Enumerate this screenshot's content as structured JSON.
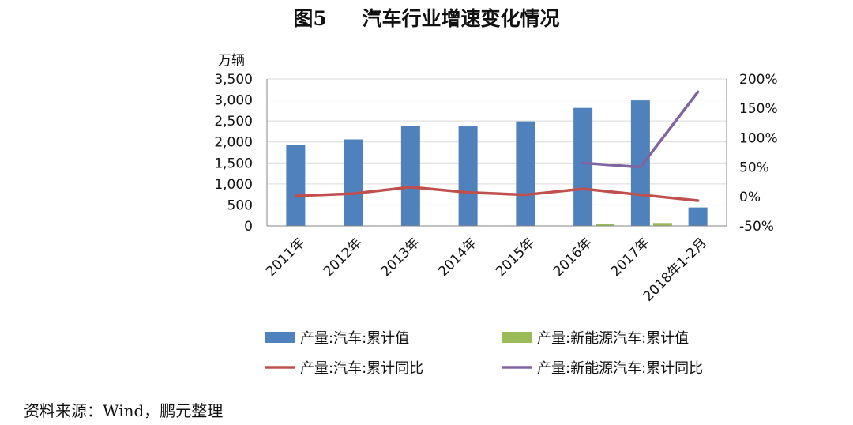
{
  "title_number": "图5",
  "title_text": "汽车行业增速变化情况",
  "source_note": "资料来源：Wind，鹏元整理",
  "colors": {
    "bar_auto": "#4f81bd",
    "bar_nev": "#9bbb59",
    "line_auto": "#c0504d",
    "line_nev": "#8064a2",
    "grid": "#d9d9d9",
    "axis": "#868686"
  },
  "chart_data": {
    "type": "bar",
    "title": "汽车行业增速变化情况",
    "ylabel_left": "万辆",
    "categories": [
      "2011年",
      "2012年",
      "2013年",
      "2014年",
      "2015年",
      "2016年",
      "2017年",
      "2018年1-2月"
    ],
    "ylim_left": [
      0,
      3500
    ],
    "yticks_left": [
      0,
      500,
      1000,
      1500,
      2000,
      2500,
      3000,
      3500
    ],
    "ytick_labels_left": [
      "0",
      "500",
      "1,000",
      "1,500",
      "2,000",
      "2,500",
      "3,000",
      "3,500"
    ],
    "ylim_right": [
      -50,
      200
    ],
    "yticks_right": [
      -50,
      0,
      50,
      100,
      150,
      200
    ],
    "ytick_labels_right": [
      "-50%",
      "0%",
      "50%",
      "100%",
      "150%",
      "200%"
    ],
    "series": [
      {
        "name": "产量:汽车:累计值",
        "type": "bar",
        "axis": "left",
        "values": [
          1920,
          2060,
          2380,
          2370,
          2490,
          2810,
          2990,
          440
        ]
      },
      {
        "name": "产量:新能源汽车:累计值",
        "type": "bar",
        "axis": "left",
        "values": [
          null,
          null,
          null,
          null,
          null,
          40,
          70,
          null
        ]
      },
      {
        "name": "产量:汽车:累计同比",
        "type": "line",
        "axis": "right",
        "values": [
          1,
          5,
          16,
          7,
          3,
          13,
          3,
          -7
        ]
      },
      {
        "name": "产量:新能源汽车:累计同比",
        "type": "line",
        "axis": "right",
        "values": [
          null,
          null,
          null,
          null,
          null,
          57,
          50,
          178
        ]
      }
    ],
    "legend": [
      "产量:汽车:累计值",
      "产量:新能源汽车:累计值",
      "产量:汽车:累计同比",
      "产量:新能源汽车:累计同比"
    ],
    "legend_position": "bottom",
    "grid": true
  }
}
